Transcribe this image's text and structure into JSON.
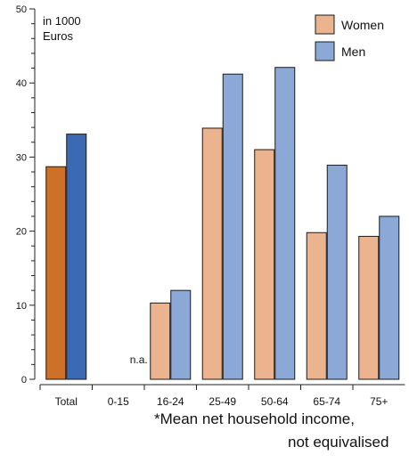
{
  "chart_data": {
    "type": "bar",
    "unit_label": "in 1000\nEuros",
    "categories": [
      "Total",
      "0-15",
      "16-24",
      "25-49",
      "50-64",
      "65-74",
      "75+"
    ],
    "series": [
      {
        "name": "Women",
        "values": [
          28.7,
          null,
          10.3,
          33.9,
          31.0,
          19.8,
          19.3
        ],
        "color": "#ebb48e",
        "total_color": "#cd7128"
      },
      {
        "name": "Men",
        "values": [
          33.1,
          null,
          12.0,
          41.2,
          42.1,
          28.9,
          22.0
        ],
        "color": "#8ba8d6",
        "total_color": "#3b69b4"
      }
    ],
    "missing_label": "n.a.",
    "ylim": [
      0,
      50
    ],
    "yticks": [
      0,
      10,
      20,
      30,
      40,
      50
    ],
    "legend_position": "top-right",
    "grid": false,
    "footnote_lines": [
      "*Mean net household income,",
      "not equivalised"
    ]
  },
  "colors": {
    "axis": "#222222",
    "text": "#111111",
    "bar_stroke": "#1a1a1a"
  }
}
